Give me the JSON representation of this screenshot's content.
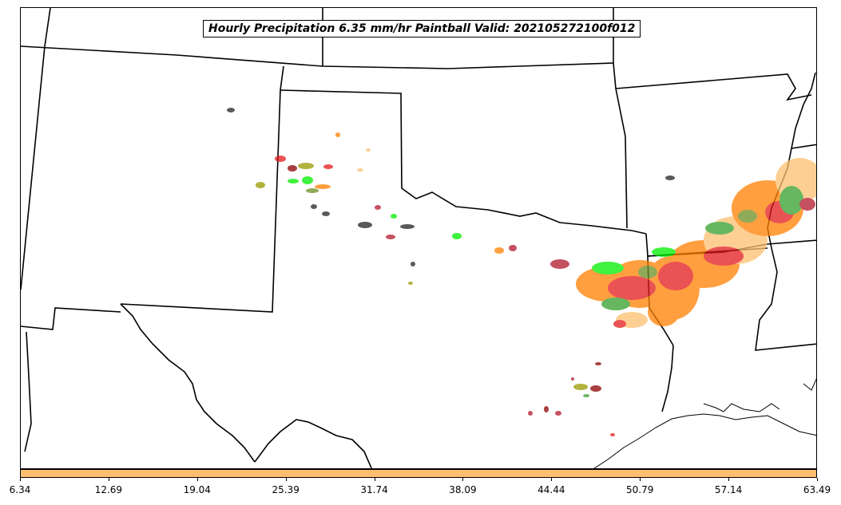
{
  "title": "Hourly Precipitation 6.35 mm/hr Paintball Valid: 202105272100f012",
  "colorbar": {
    "fill_color": "#fdbf6f",
    "ticks": [
      "6.34",
      "12.69",
      "19.04",
      "25.39",
      "31.74",
      "38.09",
      "44.44",
      "50.79",
      "57.14",
      "63.49"
    ]
  },
  "map": {
    "background": "#ffffff",
    "border_color": "#000000",
    "member_colors": [
      "#e31a1c",
      "#ff7f00",
      "#fdbf6f",
      "#33a02c",
      "#00ee00",
      "#8b0000",
      "#b2182b",
      "#6b8e23",
      "#999900",
      "#222222"
    ]
  }
}
